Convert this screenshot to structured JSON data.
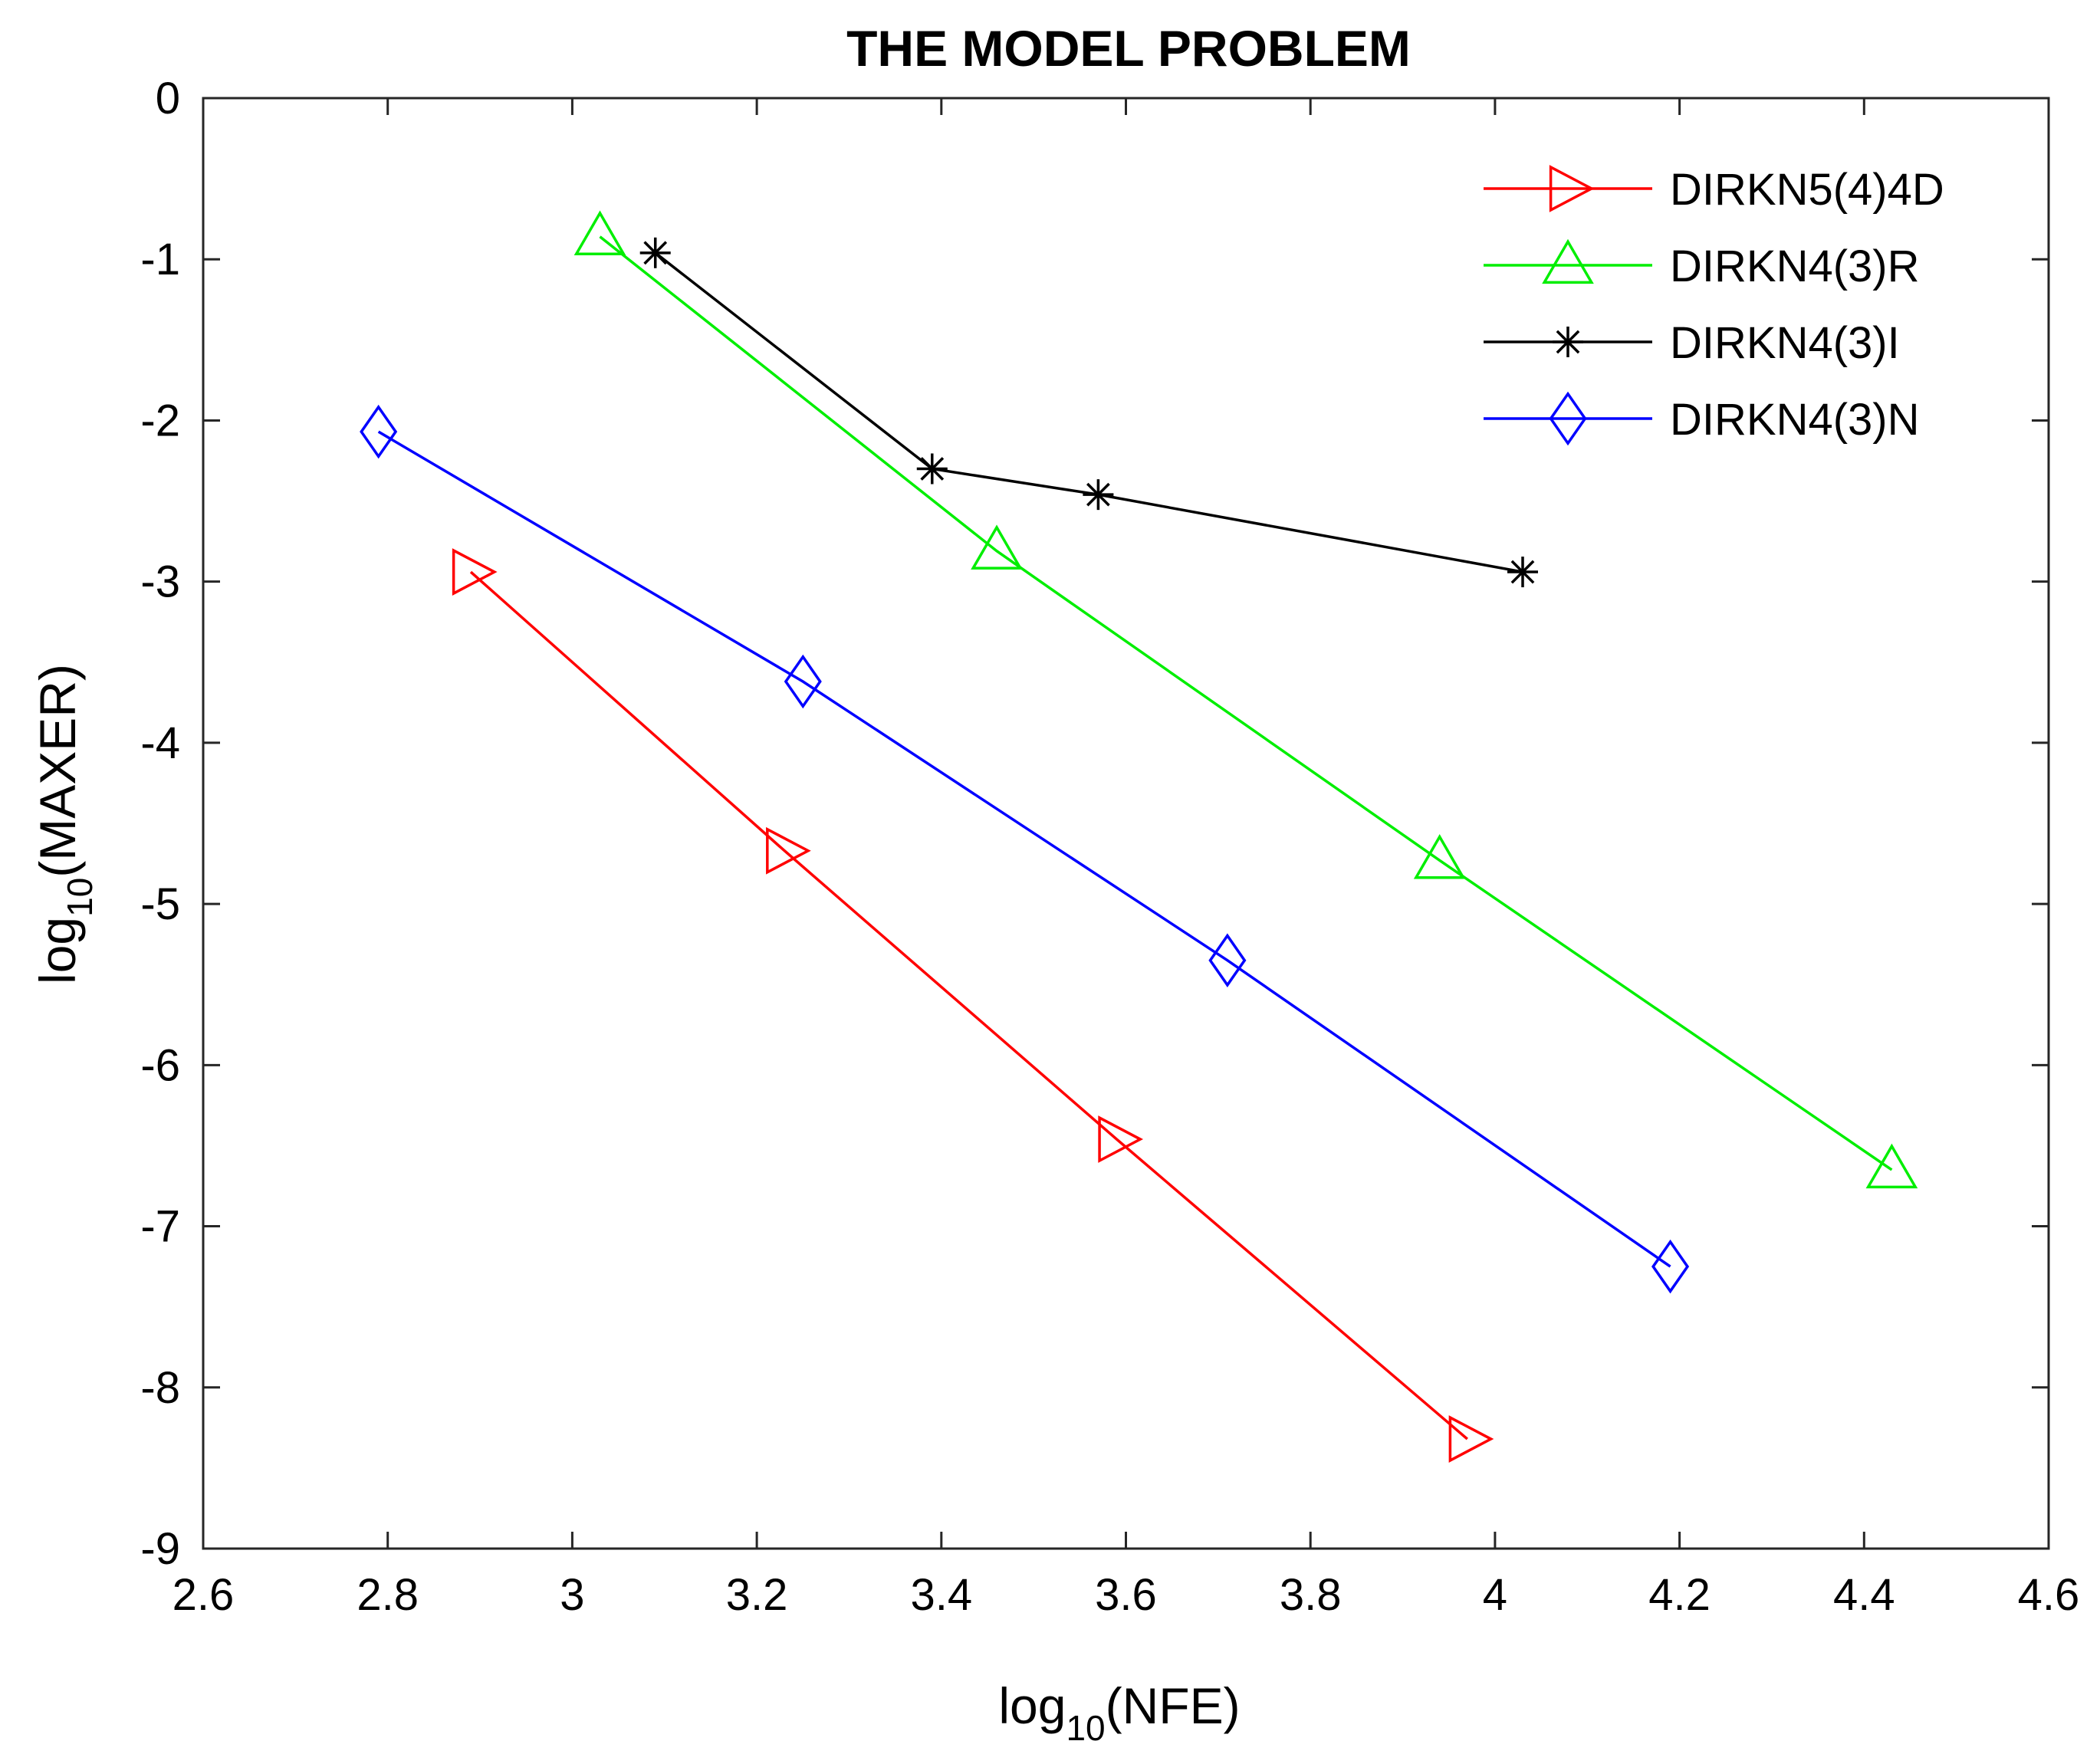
{
  "chart_data": {
    "type": "line",
    "title": "THE MODEL PROBLEM",
    "xlabel": {
      "prefix": "log",
      "subscript": "10",
      "suffix": "(NFE)"
    },
    "ylabel": {
      "prefix": "log",
      "subscript": "10",
      "suffix": "(MAXER)"
    },
    "xlim": [
      2.6,
      4.6
    ],
    "ylim": [
      -9,
      0
    ],
    "xticks": [
      2.6,
      2.8,
      3.0,
      3.2,
      3.4,
      3.6,
      3.8,
      4.0,
      4.2,
      4.4,
      4.6
    ],
    "xtick_labels": [
      "2.6",
      "2.8",
      "3",
      "3.2",
      "3.4",
      "3.6",
      "3.8",
      "4",
      "4.2",
      "4.4",
      "4.6"
    ],
    "yticks": [
      0,
      -1,
      -2,
      -3,
      -4,
      -5,
      -6,
      -7,
      -8,
      -9
    ],
    "ytick_labels": [
      "0",
      "-1",
      "-2",
      "-3",
      "-4",
      "-5",
      "-6",
      "-7",
      "-8",
      "-9"
    ],
    "grid": false,
    "legend_position": "top-right",
    "series": [
      {
        "name": "DIRKN5(4)4D",
        "color": "#ff0000",
        "marker": "triangle-right",
        "x": [
          2.89,
          3.23,
          3.59,
          3.97
        ],
        "y": [
          -2.94,
          -4.67,
          -6.46,
          -8.32
        ]
      },
      {
        "name": "DIRKN4(3)R",
        "color": "#00ee00",
        "marker": "triangle-up",
        "x": [
          3.03,
          3.46,
          3.94,
          4.43
        ],
        "y": [
          -0.86,
          -2.81,
          -4.73,
          -6.65
        ]
      },
      {
        "name": "DIRKN4(3)I",
        "color": "#000000",
        "marker": "asterisk",
        "x": [
          3.09,
          3.39,
          3.57,
          4.03
        ],
        "y": [
          -0.96,
          -2.3,
          -2.46,
          -2.94
        ]
      },
      {
        "name": "DIRKN4(3)N",
        "color": "#0000ff",
        "marker": "diamond",
        "x": [
          2.79,
          3.25,
          3.71,
          4.19
        ],
        "y": [
          -2.07,
          -3.62,
          -5.35,
          -7.25
        ]
      }
    ]
  }
}
